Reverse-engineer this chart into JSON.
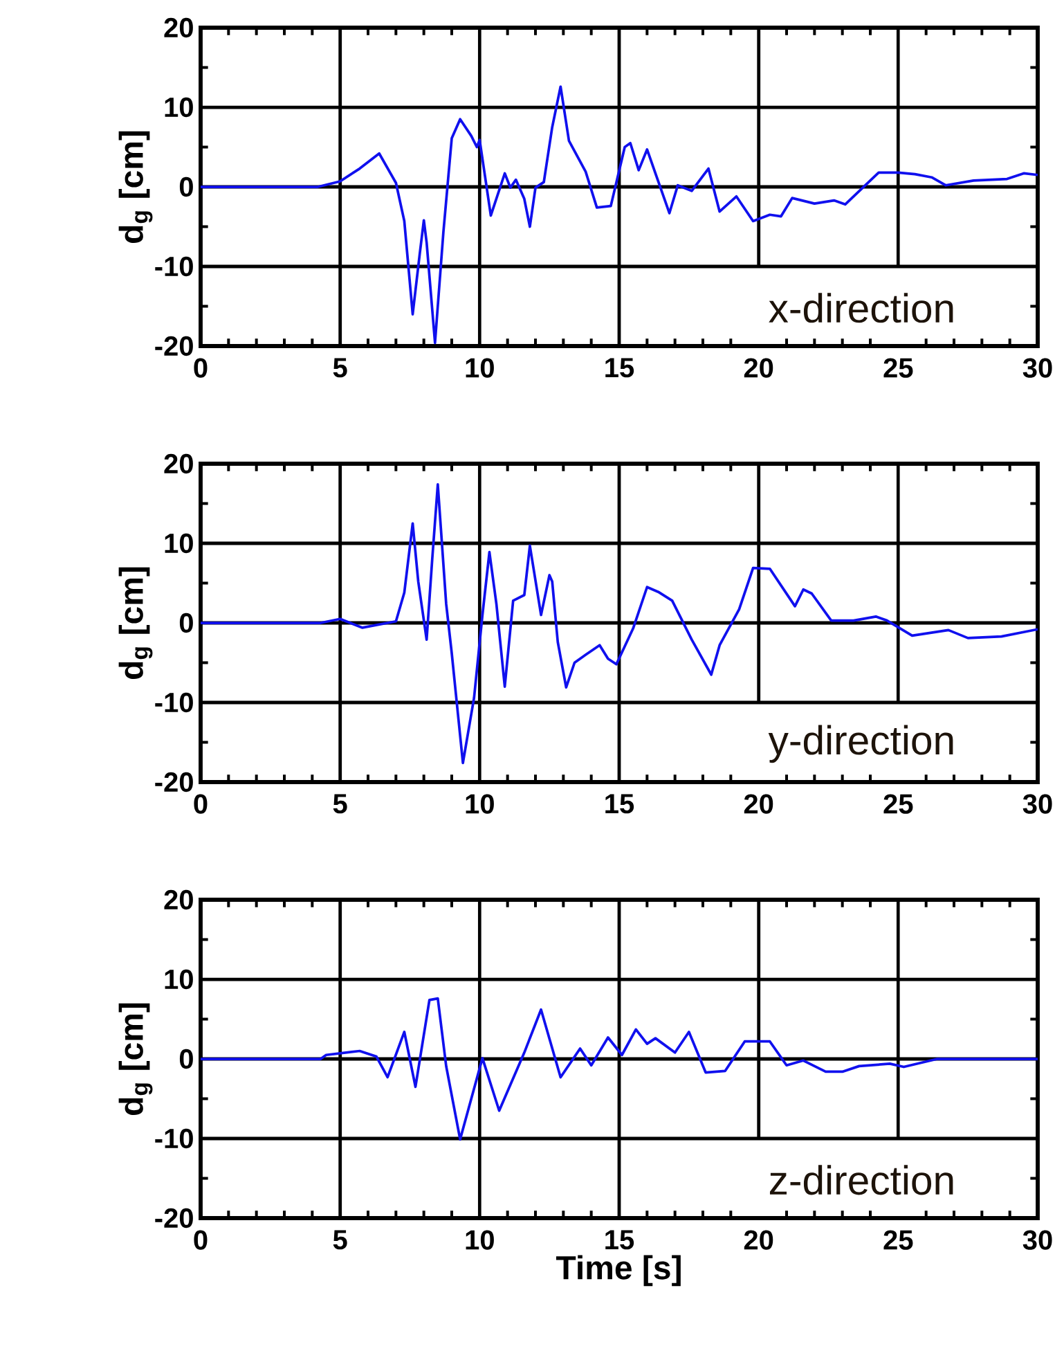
{
  "chart_data": [
    {
      "type": "line",
      "ylabel": "d$_{g}$ [cm]",
      "annotations": [
        "x-direction"
      ],
      "grid": true,
      "xlim": [
        0,
        30
      ],
      "xticks": [
        0,
        5,
        10,
        15,
        20,
        25,
        30
      ],
      "ylim": [
        -20,
        20
      ],
      "yticks": [
        -20,
        -10,
        0,
        10,
        20
      ],
      "series": [
        {
          "color": "#1010ee",
          "x": [
            0,
            4.2,
            5,
            5.7,
            6.4,
            7.0,
            7.3,
            7.6,
            7.85,
            8.0,
            8.1,
            8.4,
            8.7,
            9.0,
            9.3,
            9.7,
            9.9,
            10,
            10.4,
            10.9,
            11.1,
            11.3,
            11.6,
            11.8,
            12.0,
            12.3,
            12.6,
            12.9,
            13.2,
            13.8,
            14.2,
            14.7,
            15.2,
            15.4,
            15.7,
            16.0,
            16.8,
            17.1,
            17.6,
            18.2,
            18.6,
            19.2,
            19.8,
            20.4,
            20.8,
            21.2,
            22.0,
            22.7,
            23.1,
            24.3,
            25.0,
            25.6,
            26.2,
            26.7,
            27.7,
            28.9,
            29.5,
            30
          ],
          "values": [
            0,
            0,
            0.7,
            2.3,
            4.2,
            0.5,
            -4.3,
            -16,
            -8.5,
            -4.2,
            -7,
            -19.6,
            -5.7,
            6.1,
            8.5,
            6.4,
            5,
            5.9,
            -3.6,
            1.7,
            -0.1,
            0.9,
            -1.5,
            -5,
            -0.1,
            0.6,
            7.5,
            12.6,
            5.8,
            1.9,
            -2.6,
            -2.4,
            5,
            5.5,
            2.1,
            4.7,
            -3.3,
            0.2,
            -0.5,
            2.3,
            -3.1,
            -1.2,
            -4.3,
            -3.5,
            -3.7,
            -1.4,
            -2.1,
            -1.7,
            -2.2,
            1.8,
            1.8,
            1.6,
            1.2,
            0.2,
            0.8,
            1,
            1.7,
            1.5
          ]
        }
      ]
    },
    {
      "type": "line",
      "ylabel": "d$_{g}$ [cm]",
      "annotations": [
        "y-direction"
      ],
      "grid": true,
      "xlim": [
        0,
        30
      ],
      "xticks": [
        0,
        5,
        10,
        15,
        20,
        25,
        30
      ],
      "ylim": [
        -20,
        20
      ],
      "yticks": [
        -20,
        -10,
        0,
        10,
        20
      ],
      "series": [
        {
          "color": "#1010ee",
          "x": [
            0,
            4.3,
            5.0,
            5.8,
            7.0,
            7.3,
            7.6,
            7.8,
            8.1,
            8.3,
            8.5,
            8.8,
            9.0,
            9.4,
            9.8,
            10.1,
            10.35,
            10.6,
            10.9,
            11.2,
            11.6,
            11.8,
            12.2,
            12.5,
            12.6,
            12.8,
            13.1,
            13.4,
            13.8,
            14.3,
            14.6,
            14.9,
            15.5,
            16.0,
            16.4,
            16.9,
            17.6,
            18.3,
            18.6,
            19.3,
            19.8,
            20.4,
            21.3,
            21.6,
            21.9,
            22.6,
            23.4,
            24.2,
            24.6,
            25.5,
            26.8,
            27.5,
            28.7,
            30
          ],
          "values": [
            0,
            0,
            0.5,
            -0.6,
            0.2,
            3.8,
            12.5,
            5.2,
            -2.1,
            8,
            17.4,
            2.4,
            -3.8,
            -17.6,
            -9.4,
            1,
            8.9,
            2.4,
            -8,
            2.8,
            3.5,
            9.7,
            1,
            6,
            5.2,
            -2.4,
            -8.1,
            -5,
            -4,
            -2.8,
            -4.5,
            -5.2,
            -0.7,
            4.5,
            3.9,
            2.8,
            -2.1,
            -6.5,
            -2.8,
            1.7,
            6.9,
            6.8,
            2.1,
            4.2,
            3.7,
            0.3,
            0.3,
            0.8,
            0.3,
            -1.6,
            -0.9,
            -1.9,
            -1.7,
            -0.8
          ]
        }
      ]
    },
    {
      "type": "line",
      "xlabel": "Time [s]",
      "ylabel": "d$_{g}$ [cm]",
      "annotations": [
        "z-direction"
      ],
      "grid": true,
      "xlim": [
        0,
        30
      ],
      "xticks": [
        0,
        5,
        10,
        15,
        20,
        25,
        30
      ],
      "ylim": [
        -20,
        20
      ],
      "yticks": [
        -20,
        -10,
        0,
        10,
        20
      ],
      "series": [
        {
          "color": "#1010ee",
          "x": [
            0,
            4.3,
            4.5,
            5.7,
            6.3,
            6.7,
            7.3,
            7.7,
            8.2,
            8.5,
            8.8,
            9.3,
            10.1,
            10.7,
            11.6,
            12.2,
            12.9,
            13.6,
            14.0,
            14.6,
            15.1,
            15.6,
            16.0,
            16.3,
            17.0,
            17.5,
            18.1,
            18.8,
            19.5,
            20.4,
            21.0,
            21.6,
            22.4,
            23.0,
            23.6,
            24.7,
            25.2,
            26.4,
            30
          ],
          "values": [
            0,
            0,
            0.5,
            1,
            0.3,
            -2.3,
            3.4,
            -3.5,
            7.4,
            7.6,
            -0.9,
            -10.1,
            0.1,
            -6.5,
            0.8,
            6.2,
            -2.3,
            1.3,
            -0.8,
            2.7,
            0.5,
            3.7,
            1.9,
            2.6,
            0.8,
            3.4,
            -1.7,
            -1.5,
            2.2,
            2.2,
            -0.8,
            -0.2,
            -1.6,
            -1.6,
            -0.9,
            -0.6,
            -1,
            0,
            0
          ]
        }
      ]
    }
  ]
}
